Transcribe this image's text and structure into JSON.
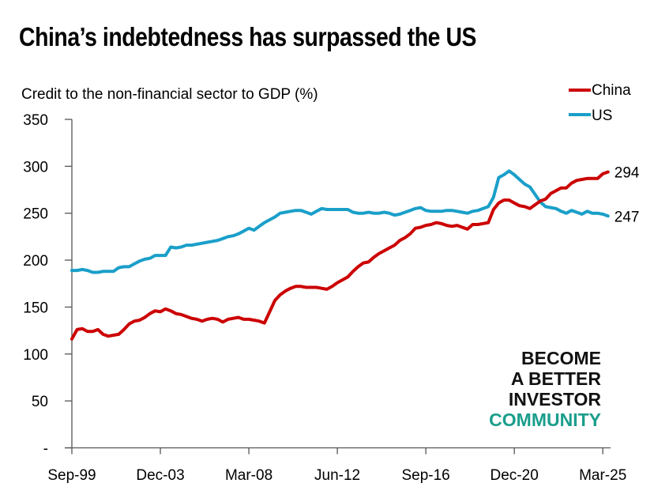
{
  "title": "China’s indebtedness has surpassed the US",
  "watermark": {
    "lines": [
      "BECOME",
      "A BETTER",
      "INVESTOR"
    ],
    "highlight": "COMMUNITY",
    "highlight_color": "#1a9e8c"
  },
  "chart_data": {
    "type": "line",
    "title": "China’s indebtedness has surpassed the US",
    "subtitle": "Credit to the non-financial sector to GDP (%)",
    "xlabel": "",
    "ylabel": "Credit to the non-financial sector to GDP (%)",
    "x_start": "Sep-99",
    "x_frequency": "quarterly",
    "x_end": "Jun-25",
    "x_ticks": [
      "Sep-99",
      "Dec-03",
      "Mar-08",
      "Jun-12",
      "Sep-16",
      "Dec-20",
      "Mar-25"
    ],
    "x_tick_step_quarters": 17,
    "y_ticks": [
      "-",
      "50",
      "100",
      "150",
      "200",
      "250",
      "300",
      "350"
    ],
    "ylim": [
      0,
      350
    ],
    "grid": false,
    "legend_position": "top-right",
    "series": [
      {
        "name": "China",
        "color": "#cc0000",
        "end_label": "294",
        "values": [
          116,
          126,
          127,
          124,
          124,
          126,
          121,
          119,
          120,
          121,
          126,
          132,
          135,
          136,
          139,
          143,
          146,
          145,
          148,
          146,
          143,
          142,
          140,
          138,
          137,
          135,
          137,
          138,
          137,
          134,
          137,
          138,
          139,
          137,
          137,
          136,
          135,
          133,
          145,
          157,
          163,
          167,
          170,
          172,
          172,
          171,
          171,
          171,
          170,
          169,
          172,
          176,
          179,
          182,
          188,
          193,
          197,
          198,
          203,
          207,
          210,
          213,
          216,
          221,
          224,
          228,
          234,
          235,
          237,
          238,
          240,
          239,
          237,
          236,
          237,
          235,
          233,
          238,
          238,
          239,
          240,
          254,
          261,
          264,
          264,
          261,
          258,
          257,
          255,
          259,
          263,
          265,
          271,
          274,
          277,
          277,
          282,
          285,
          286,
          287,
          287,
          287,
          292,
          294
        ]
      },
      {
        "name": "US",
        "color": "#1a9fc9",
        "end_label": "247",
        "values": [
          189,
          189,
          190,
          189,
          187,
          187,
          188,
          188,
          188,
          192,
          193,
          193,
          196,
          199,
          201,
          202,
          205,
          205,
          205,
          214,
          213,
          214,
          216,
          216,
          217,
          218,
          219,
          220,
          221,
          223,
          225,
          226,
          228,
          231,
          234,
          232,
          236,
          240,
          243,
          246,
          250,
          251,
          252,
          253,
          253,
          251,
          249,
          252,
          255,
          254,
          254,
          254,
          254,
          254,
          251,
          250,
          250,
          251,
          250,
          250,
          251,
          250,
          248,
          249,
          251,
          253,
          255,
          256,
          253,
          252,
          252,
          252,
          253,
          253,
          252,
          251,
          250,
          252,
          253,
          255,
          257,
          267,
          288,
          291,
          295,
          291,
          286,
          281,
          278,
          270,
          262,
          257,
          256,
          255,
          252,
          250,
          253,
          251,
          249,
          252,
          250,
          250,
          249,
          247
        ]
      }
    ]
  }
}
